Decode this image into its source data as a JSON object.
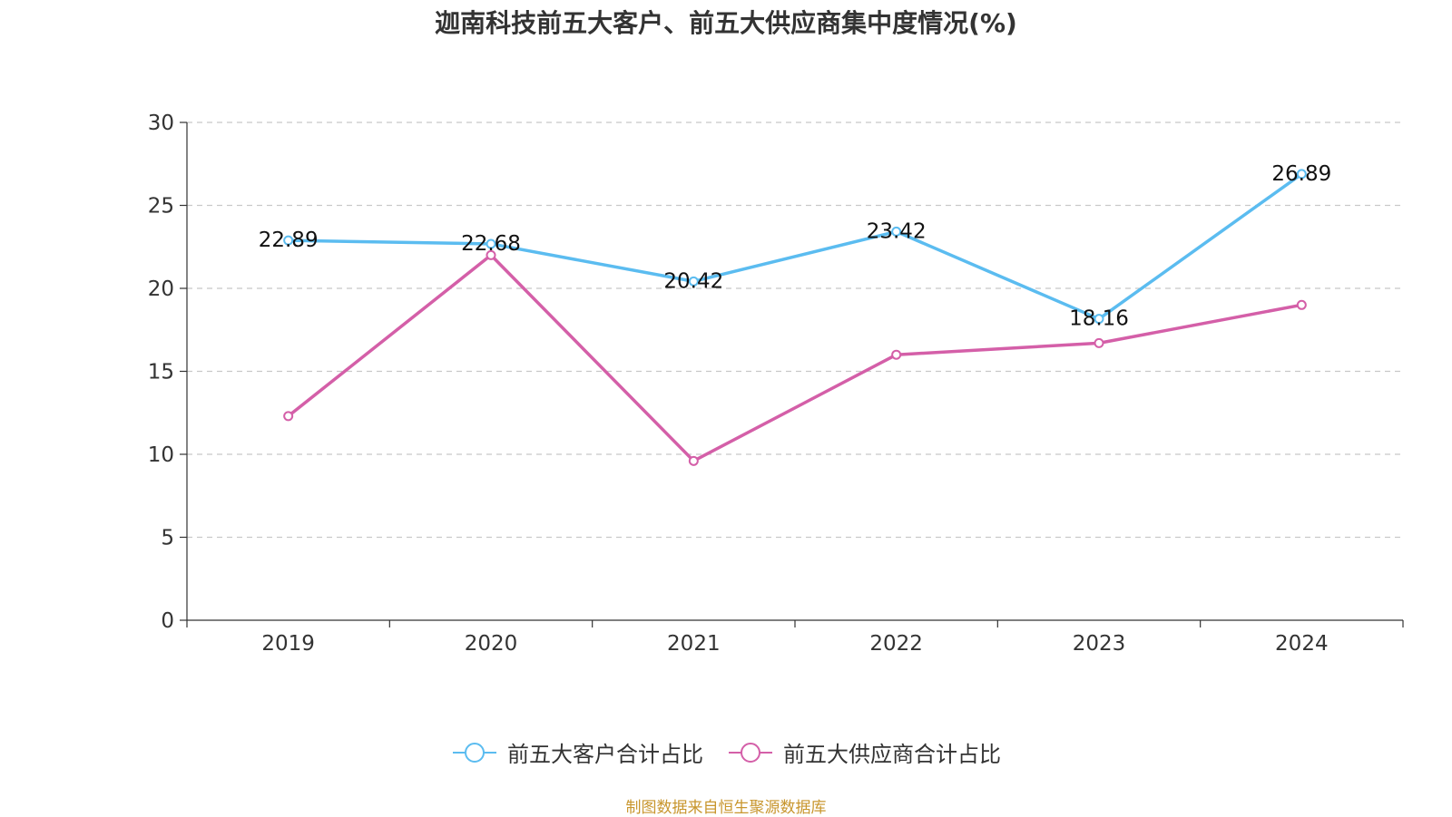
{
  "title": "迦南科技前五大客户、前五大供应商集中度情况(%)",
  "source": "制图数据来自恒生聚源数据库",
  "chart_data": {
    "type": "line",
    "categories": [
      "2019",
      "2020",
      "2021",
      "2022",
      "2023",
      "2024"
    ],
    "ylim": [
      0,
      30
    ],
    "yticks": [
      0,
      5,
      10,
      15,
      20,
      25,
      30
    ],
    "grid": true,
    "legend_position": "bottom",
    "series": [
      {
        "name": "前五大客户合计占比",
        "color": "#5bbcf0",
        "values": [
          22.89,
          22.68,
          20.42,
          23.42,
          18.16,
          26.89
        ],
        "labels": [
          "22.89",
          "22.68",
          "20.42",
          "23.42",
          "18.16",
          "26.89"
        ]
      },
      {
        "name": "前五大供应商合计占比",
        "color": "#d45fa8",
        "values": [
          12.3,
          22.0,
          9.6,
          16.0,
          16.7,
          19.0
        ],
        "labels": []
      }
    ]
  }
}
